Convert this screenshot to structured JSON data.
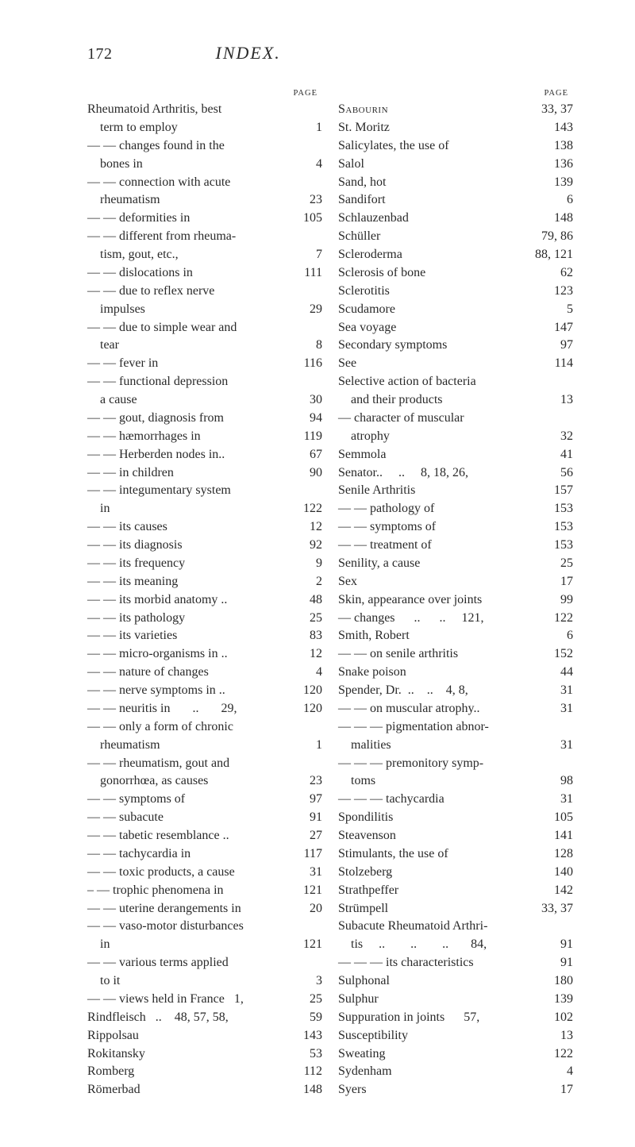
{
  "header": {
    "page_number": "172",
    "title": "INDEX."
  },
  "page_label": "PAGE",
  "left": [
    {
      "label": "Rheumatoid Arthritis, best",
      "page": ""
    },
    {
      "label": "    term to employ",
      "page": "1"
    },
    {
      "label": "— — changes found in the",
      "page": ""
    },
    {
      "label": "    bones in",
      "page": "4"
    },
    {
      "label": "— — connection with acute",
      "page": ""
    },
    {
      "label": "    rheumatism",
      "page": "23"
    },
    {
      "label": "— — deformities in",
      "page": "105"
    },
    {
      "label": "— — different from rheuma-",
      "page": ""
    },
    {
      "label": "    tism, gout, etc.,",
      "page": "7"
    },
    {
      "label": "— — dislocations in",
      "page": "111"
    },
    {
      "label": "— — due to reflex nerve",
      "page": ""
    },
    {
      "label": "    impulses",
      "page": "29"
    },
    {
      "label": "— — due to simple wear and",
      "page": ""
    },
    {
      "label": "    tear",
      "page": "8"
    },
    {
      "label": "— — fever in",
      "page": "116"
    },
    {
      "label": "— — functional depression",
      "page": ""
    },
    {
      "label": "    a cause",
      "page": "30"
    },
    {
      "label": "— — gout, diagnosis from",
      "page": "94"
    },
    {
      "label": "— — hæmorrhages in",
      "page": "119"
    },
    {
      "label": "— — Herberden nodes in..",
      "page": "67"
    },
    {
      "label": "— — in children",
      "page": "90"
    },
    {
      "label": "— — integumentary system",
      "page": ""
    },
    {
      "label": "    in",
      "page": "122"
    },
    {
      "label": "— — its causes",
      "page": "12"
    },
    {
      "label": "— — its diagnosis",
      "page": "92"
    },
    {
      "label": "— — its frequency",
      "page": "9"
    },
    {
      "label": "— — its meaning",
      "page": "2"
    },
    {
      "label": "— — its morbid anatomy ..",
      "page": "48"
    },
    {
      "label": "— — its pathology",
      "page": "25"
    },
    {
      "label": "— — its varieties",
      "page": "83"
    },
    {
      "label": "— — micro-organisms in ..",
      "page": "12"
    },
    {
      "label": "— — nature of changes",
      "page": "4"
    },
    {
      "label": "— — nerve symptoms in ..",
      "page": "120"
    },
    {
      "label": "— — neuritis in       ..       29,",
      "page": "120"
    },
    {
      "label": "— — only a form of chronic",
      "page": ""
    },
    {
      "label": "    rheumatism",
      "page": "1"
    },
    {
      "label": "— — rheumatism, gout and",
      "page": ""
    },
    {
      "label": "    gonorrhœa, as causes",
      "page": "23"
    },
    {
      "label": "— — symptoms of",
      "page": "97"
    },
    {
      "label": "— — subacute",
      "page": "91"
    },
    {
      "label": "— — tabetic resemblance ..",
      "page": "27"
    },
    {
      "label": "— — tachycardia in",
      "page": "117"
    },
    {
      "label": "— — toxic products, a cause",
      "page": "31"
    },
    {
      "label": "– — trophic phenomena in",
      "page": "121"
    },
    {
      "label": "— — uterine derangements in",
      "page": "20"
    },
    {
      "label": "— — vaso-motor disturbances",
      "page": ""
    },
    {
      "label": "    in",
      "page": "121"
    },
    {
      "label": "— — various terms applied",
      "page": ""
    },
    {
      "label": "    to it",
      "page": "3"
    },
    {
      "label": "— — views held in France   1,",
      "page": "25"
    },
    {
      "label": "Rindfleisch   ..    48, 57, 58,",
      "page": "59"
    },
    {
      "label": "Rippolsau",
      "page": "143"
    },
    {
      "label": "Rokitansky",
      "page": "53"
    },
    {
      "label": "Romberg",
      "page": "112"
    },
    {
      "label": "Römerbad",
      "page": "148"
    }
  ],
  "right": [
    {
      "label": "Sabourin",
      "page": "33, 37",
      "sc": true
    },
    {
      "label": "St. Moritz",
      "page": "143"
    },
    {
      "label": "Salicylates, the use of",
      "page": "138"
    },
    {
      "label": "Salol",
      "page": "136"
    },
    {
      "label": "Sand, hot",
      "page": "139"
    },
    {
      "label": "Sandifort",
      "page": "6"
    },
    {
      "label": "Schlauzenbad",
      "page": "148"
    },
    {
      "label": "Schüller",
      "page": "79, 86"
    },
    {
      "label": "Scleroderma",
      "page": "88, 121"
    },
    {
      "label": "Sclerosis of bone",
      "page": "62"
    },
    {
      "label": "Sclerotitis",
      "page": "123"
    },
    {
      "label": "Scudamore",
      "page": "5"
    },
    {
      "label": "Sea voyage",
      "page": "147"
    },
    {
      "label": "Secondary symptoms",
      "page": "97"
    },
    {
      "label": "See",
      "page": "114"
    },
    {
      "label": "Selective action of bacteria",
      "page": ""
    },
    {
      "label": "    and their products",
      "page": "13"
    },
    {
      "label": "— character of muscular",
      "page": ""
    },
    {
      "label": "    atrophy",
      "page": "32"
    },
    {
      "label": "Semmola",
      "page": "41"
    },
    {
      "label": "Senator..     ..     8, 18, 26,",
      "page": "56"
    },
    {
      "label": "Senile Arthritis",
      "page": "157"
    },
    {
      "label": "— — pathology of",
      "page": "153"
    },
    {
      "label": "— — symptoms of",
      "page": "153"
    },
    {
      "label": "— — treatment of",
      "page": "153"
    },
    {
      "label": "Senility, a cause",
      "page": "25"
    },
    {
      "label": "Sex",
      "page": "17"
    },
    {
      "label": "Skin, appearance over joints",
      "page": "99"
    },
    {
      "label": "— changes      ..      ..     121,",
      "page": "122"
    },
    {
      "label": "Smith, Robert",
      "page": "6"
    },
    {
      "label": "— — on senile arthritis",
      "page": "152"
    },
    {
      "label": "Snake poison",
      "page": "44"
    },
    {
      "label": "Spender, Dr.  ..    ..    4, 8,",
      "page": "31"
    },
    {
      "label": "— — on muscular atrophy..",
      "page": "31"
    },
    {
      "label": "— — — pigmentation abnor-",
      "page": ""
    },
    {
      "label": "    malities",
      "page": "31"
    },
    {
      "label": "— — — premonitory symp-",
      "page": ""
    },
    {
      "label": "    toms",
      "page": "98"
    },
    {
      "label": "— — — tachycardia",
      "page": "31"
    },
    {
      "label": "Spondilitis",
      "page": "105"
    },
    {
      "label": "Steavenson",
      "page": "141"
    },
    {
      "label": "Stimulants, the use of",
      "page": "128"
    },
    {
      "label": "Stolzeberg",
      "page": "140"
    },
    {
      "label": "Strathpeffer",
      "page": "142"
    },
    {
      "label": "Strümpell",
      "page": "33, 37"
    },
    {
      "label": "Subacute Rheumatoid Arthri-",
      "page": ""
    },
    {
      "label": "    tis     ..        ..        ..       84,",
      "page": "91"
    },
    {
      "label": "— — — its characteristics",
      "page": "91"
    },
    {
      "label": "Sulphonal",
      "page": "180"
    },
    {
      "label": "Sulphur",
      "page": "139"
    },
    {
      "label": "Suppuration in joints      57,",
      "page": "102"
    },
    {
      "label": "Susceptibility",
      "page": "13"
    },
    {
      "label": "Sweating",
      "page": "122"
    },
    {
      "label": "Sydenham",
      "page": "4"
    },
    {
      "label": "Syers",
      "page": "17"
    }
  ]
}
